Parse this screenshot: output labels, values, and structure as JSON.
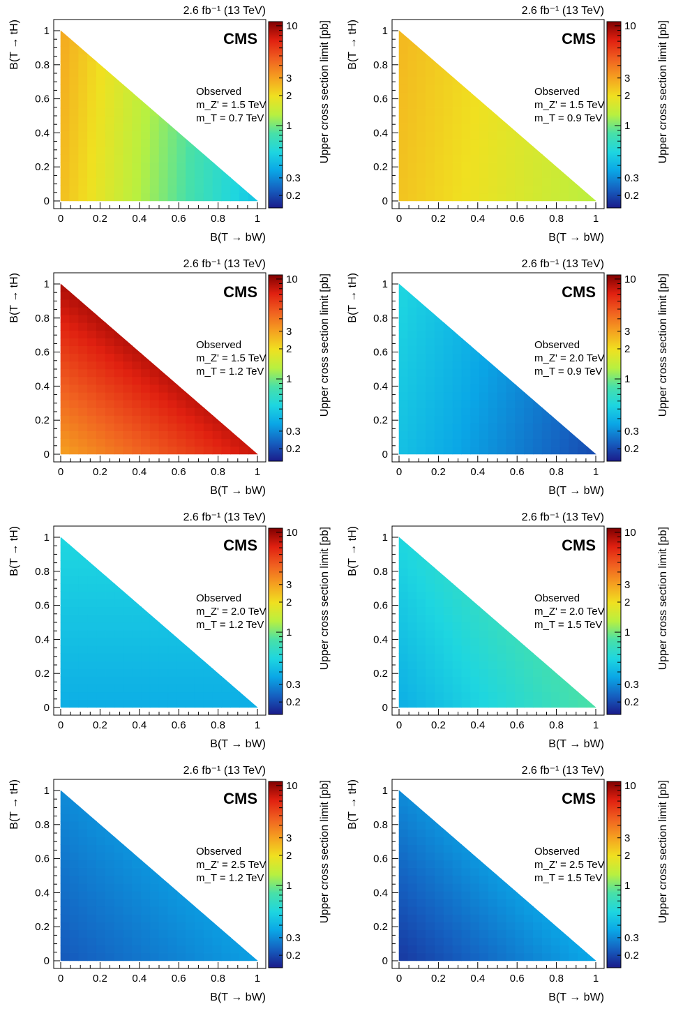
{
  "figure": {
    "lumi_label": "2.6 fb⁻¹ (13 TeV)",
    "experiment_label": "CMS",
    "observed_label": "Observed",
    "xlabel": "B(T → bW)",
    "ylabel": "B(T → tH)",
    "zlabel": "Upper cross section limit [pb]",
    "colorbar_ticks": [
      "10",
      "3",
      "2",
      "1",
      "0.3",
      "0.2"
    ],
    "axis_ticks": [
      "0",
      "0.2",
      "0.4",
      "0.6",
      "0.8",
      "1"
    ],
    "colormap_stops": [
      "#1b1b8a",
      "#1560c0",
      "#0aa6e6",
      "#1ed6e0",
      "#48e0a8",
      "#b8f040",
      "#f0e020",
      "#f5a020",
      "#f06020",
      "#e02010",
      "#800000"
    ]
  },
  "chart_data": [
    {
      "type": "heatmap",
      "title": "",
      "xlabel": "B(T → bW)",
      "ylabel": "B(T → tH)",
      "zlabel": "Upper cross section limit [pb]",
      "xlim": [
        0,
        1
      ],
      "ylim": [
        0,
        1
      ],
      "zlim": [
        0.15,
        11
      ],
      "z_scale": "log",
      "domain": "x + y <= 1",
      "mZprime_label": "m_Z' = 1.5 TeV",
      "mT_label": "m_T = 0.7 TeV",
      "mZprime_TeV": 1.5,
      "mT_TeV": 0.7,
      "corner_limits_pb": {
        "bW0_tH0": 2.5,
        "bW1_tH0": 0.45,
        "bW0_tH1": 2.9
      }
    },
    {
      "type": "heatmap",
      "title": "",
      "xlabel": "B(T → bW)",
      "ylabel": "B(T → tH)",
      "zlabel": "Upper cross section limit [pb]",
      "xlim": [
        0,
        1
      ],
      "ylim": [
        0,
        1
      ],
      "zlim": [
        0.15,
        11
      ],
      "z_scale": "log",
      "domain": "x + y <= 1",
      "mZprime_label": "m_Z' = 1.5 TeV",
      "mT_label": "m_T = 0.9 TeV",
      "mZprime_TeV": 1.5,
      "mT_TeV": 0.9,
      "corner_limits_pb": {
        "bW0_tH0": 2.4,
        "bW1_tH0": 1.3,
        "bW0_tH1": 2.6
      }
    },
    {
      "type": "heatmap",
      "title": "",
      "xlabel": "B(T → bW)",
      "ylabel": "B(T → tH)",
      "zlabel": "Upper cross section limit [pb]",
      "xlim": [
        0,
        1
      ],
      "ylim": [
        0,
        1
      ],
      "zlim": [
        0.15,
        11
      ],
      "z_scale": "log",
      "domain": "x + y <= 1",
      "mZprime_label": "m_Z' = 1.5 TeV",
      "mT_label": "m_T = 1.2 TeV",
      "mZprime_TeV": 1.5,
      "mT_TeV": 1.2,
      "corner_limits_pb": {
        "bW0_tH0": 3.0,
        "bW1_tH0": 8.0,
        "bW0_tH1": 9.0
      }
    },
    {
      "type": "heatmap",
      "title": "",
      "xlabel": "B(T → bW)",
      "ylabel": "B(T → tH)",
      "zlabel": "Upper cross section limit [pb]",
      "xlim": [
        0,
        1
      ],
      "ylim": [
        0,
        1
      ],
      "zlim": [
        0.15,
        11
      ],
      "z_scale": "log",
      "domain": "x + y <= 1",
      "mZprime_label": "m_Z' = 2.0 TeV",
      "mT_label": "m_T = 0.9 TeV",
      "mZprime_TeV": 2.0,
      "mT_TeV": 0.9,
      "corner_limits_pb": {
        "bW0_tH0": 0.45,
        "bW1_tH0": 0.2,
        "bW0_tH1": 0.55
      }
    },
    {
      "type": "heatmap",
      "title": "",
      "xlabel": "B(T → bW)",
      "ylabel": "B(T → tH)",
      "zlabel": "Upper cross section limit [pb]",
      "xlim": [
        0,
        1
      ],
      "ylim": [
        0,
        1
      ],
      "zlim": [
        0.15,
        11
      ],
      "z_scale": "log",
      "domain": "x + y <= 1",
      "mZprime_label": "m_Z' = 2.0 TeV",
      "mT_label": "m_T = 1.2 TeV",
      "mZprime_TeV": 2.0,
      "mT_TeV": 1.2,
      "corner_limits_pb": {
        "bW0_tH0": 0.38,
        "bW1_tH0": 0.38,
        "bW0_tH1": 0.55
      }
    },
    {
      "type": "heatmap",
      "title": "",
      "xlabel": "B(T → bW)",
      "ylabel": "B(T → tH)",
      "zlabel": "Upper cross section limit [pb]",
      "xlim": [
        0,
        1
      ],
      "ylim": [
        0,
        1
      ],
      "zlim": [
        0.15,
        11
      ],
      "z_scale": "log",
      "domain": "x + y <= 1",
      "mZprime_label": "m_Z' = 2.0 TeV",
      "mT_label": "m_T = 1.5 TeV",
      "mZprime_TeV": 2.0,
      "mT_TeV": 1.5,
      "corner_limits_pb": {
        "bW0_tH0": 0.38,
        "bW1_tH0": 0.85,
        "bW0_tH1": 0.55
      }
    },
    {
      "type": "heatmap",
      "title": "",
      "xlabel": "B(T → bW)",
      "ylabel": "B(T → tH)",
      "zlabel": "Upper cross section limit [pb]",
      "xlim": [
        0,
        1
      ],
      "ylim": [
        0,
        1
      ],
      "zlim": [
        0.15,
        11
      ],
      "z_scale": "log",
      "domain": "x + y <= 1",
      "mZprime_label": "m_Z' = 2.5 TeV",
      "mT_label": "m_T = 1.2 TeV",
      "mZprime_TeV": 2.5,
      "mT_TeV": 1.2,
      "corner_limits_pb": {
        "bW0_tH0": 0.22,
        "bW1_tH0": 0.34,
        "bW0_tH1": 0.3
      }
    },
    {
      "type": "heatmap",
      "title": "",
      "xlabel": "B(T → bW)",
      "ylabel": "B(T → tH)",
      "zlabel": "Upper cross section limit [pb]",
      "xlim": [
        0,
        1
      ],
      "ylim": [
        0,
        1
      ],
      "zlim": [
        0.15,
        11
      ],
      "z_scale": "log",
      "domain": "x + y <= 1",
      "mZprime_label": "m_Z' = 2.5 TeV",
      "mT_label": "m_T = 1.5 TeV",
      "mZprime_TeV": 2.5,
      "mT_TeV": 1.5,
      "corner_limits_pb": {
        "bW0_tH0": 0.18,
        "bW1_tH0": 0.36,
        "bW0_tH1": 0.3
      }
    }
  ]
}
